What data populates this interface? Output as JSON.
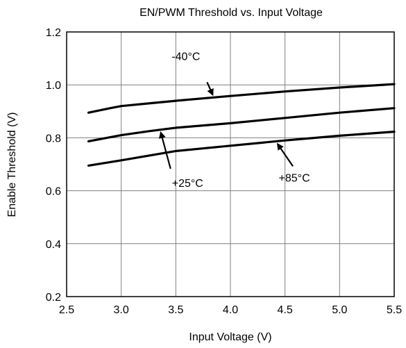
{
  "chart_data": {
    "type": "line",
    "title": "EN/PWM Threshold vs. Input Voltage",
    "xlabel": "Input Voltage (V)",
    "ylabel": "Enable Threshold (V)",
    "xlim": [
      2.5,
      5.5
    ],
    "ylim": [
      0.2,
      1.2
    ],
    "x_ticks": [
      2.5,
      3.0,
      3.5,
      4.0,
      4.5,
      5.0,
      5.5
    ],
    "x_tick_labels": [
      "2.5",
      "3.0",
      "3.5",
      "4.0",
      "4.5",
      "5.0",
      "5.5"
    ],
    "y_ticks": [
      0.2,
      0.4,
      0.6,
      0.8,
      1.0,
      1.2
    ],
    "y_tick_labels": [
      "0.2",
      "0.4",
      "0.6",
      "0.8",
      "1.0",
      "1.2"
    ],
    "grid": true,
    "legend": "none",
    "series": [
      {
        "name": "-40°C",
        "x": [
          2.7,
          2.9,
          3.0,
          3.25,
          3.5,
          4.0,
          4.5,
          5.0,
          5.5
        ],
        "y": [
          0.895,
          0.912,
          0.92,
          0.93,
          0.94,
          0.958,
          0.975,
          0.99,
          1.003
        ]
      },
      {
        "name": "+25°C",
        "x": [
          2.7,
          3.0,
          3.25,
          3.5,
          4.0,
          4.5,
          5.0,
          5.5
        ],
        "y": [
          0.787,
          0.81,
          0.825,
          0.838,
          0.855,
          0.875,
          0.895,
          0.912
        ]
      },
      {
        "name": "+85°C",
        "x": [
          2.7,
          3.0,
          3.5,
          4.0,
          4.5,
          5.0,
          5.5
        ],
        "y": [
          0.695,
          0.715,
          0.75,
          0.77,
          0.79,
          0.808,
          0.823
        ]
      }
    ],
    "annotations": [
      {
        "text": "-40°C",
        "series": 0,
        "x": 3.85
      },
      {
        "text": "+25°C",
        "series": 1,
        "x": 3.35
      },
      {
        "text": "+85°C",
        "series": 2,
        "x": 4.42
      }
    ]
  }
}
